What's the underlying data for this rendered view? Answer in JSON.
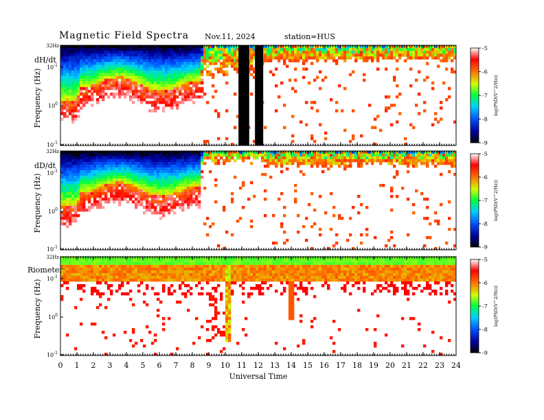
{
  "header": {
    "title": "Magnetic  Field  Spectra",
    "date": "Nov.11, 2024",
    "station": "station=HUS"
  },
  "chart_data": [
    {
      "type": "heatmap",
      "panel_label": "dH/dt",
      "ylabel": "Frequency  (Hz)",
      "xlabel": "",
      "top_label": "32Hz",
      "y_ticks": [
        "10-1",
        "100",
        "10-1"
      ],
      "xlim": [
        0,
        24
      ],
      "gaps_ut": [
        [
          10.8,
          11.45
        ],
        [
          11.8,
          12.3
        ]
      ],
      "colorbar": {
        "label": "log(PSD(V^2/Hz))",
        "ticks": [
          -5,
          -6,
          -7,
          -8,
          -9
        ],
        "range": [
          -9,
          -5
        ]
      }
    },
    {
      "type": "heatmap",
      "panel_label": "dD/dt",
      "ylabel": "Frequency  (Hz)",
      "xlabel": "",
      "top_label": "32Hz",
      "y_ticks": [
        "10-1",
        "100",
        "10-1"
      ],
      "xlim": [
        0,
        24
      ],
      "colorbar": {
        "label": "log(PSD(V^2/Hz))",
        "ticks": [
          -5,
          -6,
          -7,
          -8,
          -9
        ],
        "range": [
          -9,
          -5
        ]
      }
    },
    {
      "type": "heatmap",
      "panel_label": "Riometer",
      "ylabel": "Frequency  (Hz)",
      "xlabel": "Universal  Time",
      "top_label": "32Hz",
      "y_ticks": [
        "10-1",
        "100",
        "10-1"
      ],
      "xlim": [
        0,
        24
      ],
      "x_ticks": [
        "0",
        "1",
        "2",
        "3",
        "4",
        "5",
        "6",
        "7",
        "8",
        "9",
        "10",
        "11",
        "12",
        "13",
        "14",
        "15",
        "16",
        "17",
        "18",
        "19",
        "20",
        "21",
        "22",
        "23",
        "24"
      ],
      "colorbar": {
        "label": "log(PSD(V^2/Hz))",
        "ticks": [
          -5,
          -6,
          -7,
          -8,
          -9
        ],
        "range": [
          -9,
          -5
        ]
      }
    }
  ]
}
